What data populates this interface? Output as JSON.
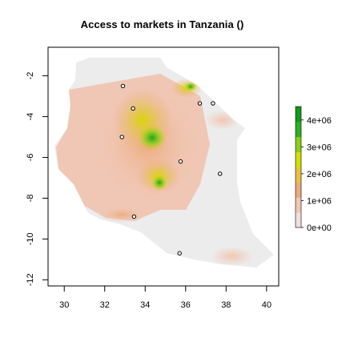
{
  "title": "Access to markets in Tanzania ()",
  "chart_data": {
    "type": "heatmap",
    "title": "Access to markets in Tanzania ()",
    "xlim": [
      29.2,
      40.6
    ],
    "ylim": [
      -12.3,
      -0.6
    ],
    "x_ticks": [
      30,
      32,
      34,
      36,
      38,
      40
    ],
    "x_tick_labels": [
      "30",
      "32",
      "34",
      "36",
      "38",
      "40"
    ],
    "y_ticks": [
      -2,
      -4,
      -6,
      -8,
      -10,
      -12
    ],
    "y_tick_labels": [
      "-2",
      "-4",
      "-6",
      "-8",
      "-10",
      "-12"
    ],
    "colorbar": {
      "min": 0,
      "max": 4500000,
      "ticks": [
        0,
        1000000,
        2000000,
        3000000,
        4000000
      ],
      "tick_labels": [
        "0e+00",
        "1e+06",
        "2e+06",
        "3e+06",
        "4e+06"
      ],
      "colors": [
        "#f2e0e0",
        "#f0c8b4",
        "#ecaa78",
        "#e6c23c",
        "#d2e000",
        "#8ccf18",
        "#2fb021",
        "#159a17"
      ]
    },
    "markets": [
      {
        "lon": 32.9,
        "lat": -2.5
      },
      {
        "lon": 33.4,
        "lat": -3.6
      },
      {
        "lon": 36.7,
        "lat": -3.35
      },
      {
        "lon": 37.35,
        "lat": -3.35
      },
      {
        "lon": 32.85,
        "lat": -5.0
      },
      {
        "lon": 35.75,
        "lat": -6.2
      },
      {
        "lon": 37.7,
        "lat": -6.8
      },
      {
        "lon": 33.45,
        "lat": -8.9
      },
      {
        "lon": 35.7,
        "lat": -10.7
      }
    ]
  }
}
